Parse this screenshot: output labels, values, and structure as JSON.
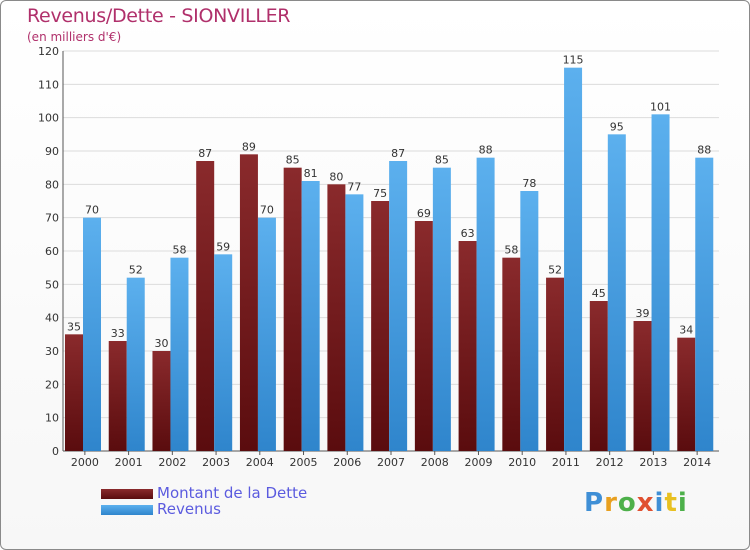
{
  "chart_data": {
    "type": "bar",
    "title": "Revenus/Dette - SIONVILLER",
    "subtitle": "(en milliers d'€)",
    "categories": [
      "2000",
      "2001",
      "2002",
      "2003",
      "2004",
      "2005",
      "2006",
      "2007",
      "2008",
      "2009",
      "2010",
      "2011",
      "2012",
      "2013",
      "2014"
    ],
    "series": [
      {
        "name": "Montant de la Dette",
        "values": [
          35,
          33,
          30,
          87,
          89,
          85,
          80,
          75,
          69,
          63,
          58,
          52,
          45,
          39,
          34
        ],
        "color": "#7a1f22"
      },
      {
        "name": "Revenus",
        "values": [
          70,
          52,
          58,
          59,
          70,
          81,
          77,
          87,
          85,
          88,
          78,
          115,
          95,
          101,
          88
        ],
        "color": "#4aa3e6"
      }
    ],
    "ylim": [
      0,
      120
    ],
    "yticks": [
      0,
      10,
      20,
      30,
      40,
      50,
      60,
      70,
      80,
      90,
      100,
      110,
      120
    ],
    "grid": true,
    "legend": "bottom-left"
  },
  "logo": {
    "text": "Proxiti"
  }
}
